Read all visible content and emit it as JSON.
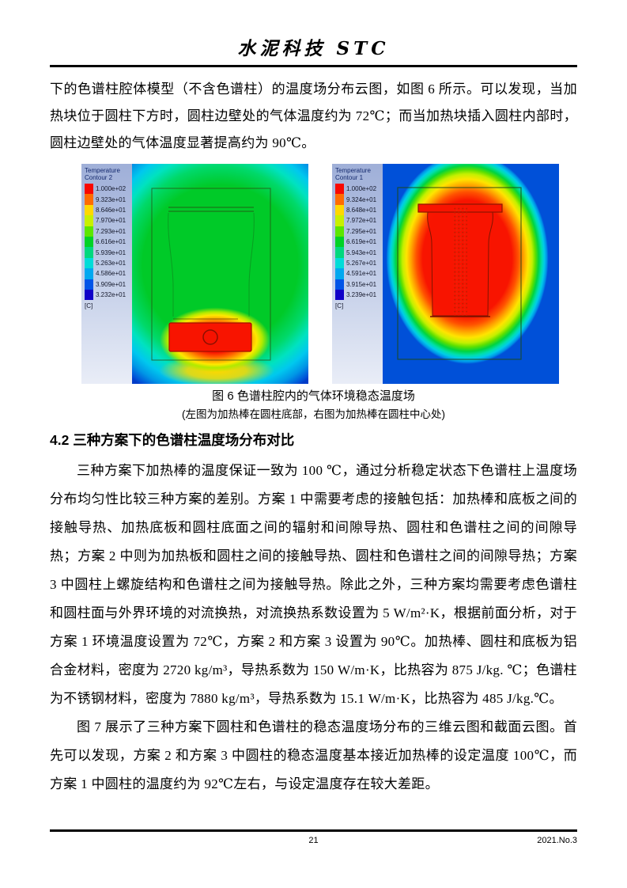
{
  "header": {
    "journal_title": "水泥科技 STC"
  },
  "paragraphs": {
    "p1": "下的色谱柱腔体模型（不含色谱柱）的温度场分布云图，如图 6 所示。可以发现，当加热块位于圆柱下方时，圆柱边壁处的气体温度约为 72℃；而当加热块插入圆柱内部时，圆柱边壁处的气体温度显著提高约为 90℃。",
    "p2": "三种方案下加热棒的温度保证一致为 100 ℃，通过分析稳定状态下色谱柱上温度场分布均匀性比较三种方案的差别。方案 1 中需要考虑的接触包括：加热棒和底板之间的接触导热、加热底板和圆柱底面之间的辐射和间隙导热、圆柱和色谱柱之间的间隙导热；方案 2 中则为加热板和圆柱之间的接触导热、圆柱和色谱柱之间的间隙导热；方案 3 中圆柱上螺旋结构和色谱柱之间为接触导热。除此之外，三种方案均需要考虑色谱柱和圆柱面与外界环境的对流换热，对流换热系数设置为 5 W/m²·K，根据前面分析，对于方案 1 环境温度设置为 72℃，方案 2 和方案 3 设置为 90℃。加热棒、圆柱和底板为铝合金材料，密度为 2720 kg/m³，导热系数为 150 W/m·K，比热容为 875 J/kg. ℃；色谱柱为不锈钢材料，密度为 7880 kg/m³，导热系数为 15.1 W/m·K，比热容为 485 J/kg.℃。",
    "p3": "图 7 展示了三种方案下圆柱和色谱柱的稳态温度场分布的三维云图和截面云图。首先可以发现，方案 2 和方案 3 中圆柱的稳态温度基本接近加热棒的设定温度 100℃，而方案 1 中圆柱的温度约为 92℃左右，与设定温度存在较大差距。"
  },
  "figure": {
    "caption": "图 6 色谱柱腔内的气体环境稳态温度场",
    "caption_sub": "(左图为加热棒在圆柱底部，右图为加热棒在圆柱中心处)"
  },
  "section": {
    "heading": "4.2 三种方案下的色谱柱温度场分布对比"
  },
  "contours": {
    "left": {
      "title_line1": "Temperature",
      "title_line2": "Contour 2",
      "unit": "[C]",
      "levels": [
        "1.000e+02",
        "9.323e+01",
        "8.646e+01",
        "7.970e+01",
        "7.293e+01",
        "6.616e+01",
        "5.939e+01",
        "5.263e+01",
        "4.586e+01",
        "3.909e+01",
        "3.232e+01"
      ]
    },
    "right": {
      "title_line1": "Temperature",
      "title_line2": "Contour 1",
      "unit": "[C]",
      "levels": [
        "1.000e+02",
        "9.324e+01",
        "8.648e+01",
        "7.972e+01",
        "7.295e+01",
        "6.619e+01",
        "5.943e+01",
        "5.267e+01",
        "4.591e+01",
        "3.915e+01",
        "3.239e+01"
      ]
    }
  },
  "colors": {
    "colorbar": [
      "#f80800",
      "#ff6c00",
      "#ffd800",
      "#c8f000",
      "#5ce600",
      "#00d226",
      "#00d87e",
      "#00dcd8",
      "#00a8f0",
      "#0054e8",
      "#1000c8"
    ],
    "hot": "#f81400",
    "cold": "#0050d8",
    "legend_bg_top": "#9fafd8",
    "legend_bg_bottom": "#e9edf7"
  },
  "footer": {
    "page_number": "21",
    "issue": "2021.No.3"
  }
}
